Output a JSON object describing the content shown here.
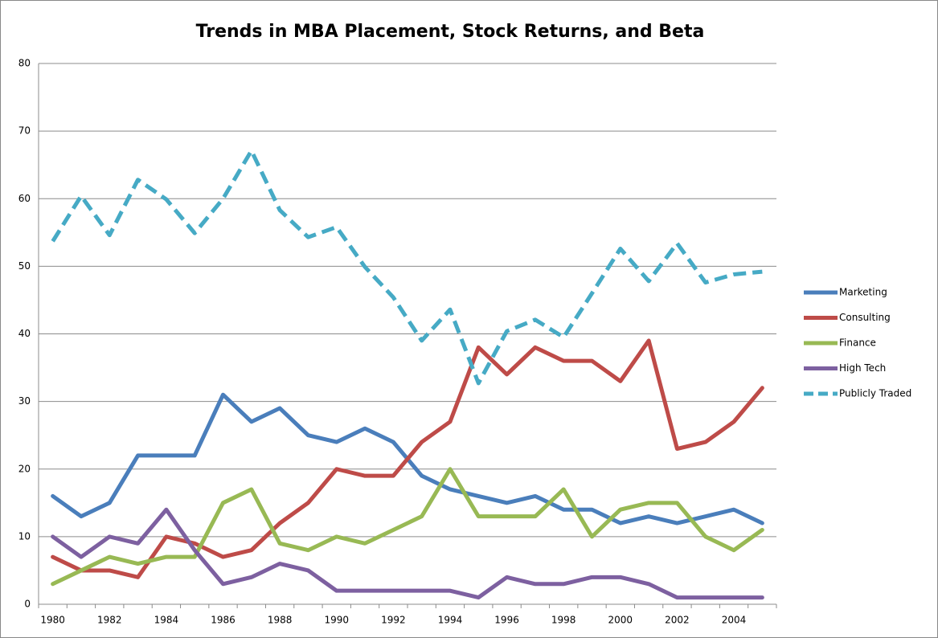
{
  "chart_data": {
    "type": "line",
    "title": "Trends in MBA Placement, Stock Returns, and Beta",
    "categories": [
      "1980",
      null,
      "1982",
      null,
      "1984",
      null,
      "1986",
      null,
      "1988",
      null,
      "1990",
      null,
      "1992",
      null,
      "1994",
      null,
      "1996",
      null,
      "1998",
      null,
      "2000",
      null,
      "2002",
      null,
      "2004",
      null
    ],
    "series": [
      {
        "name": "Marketing",
        "color": "#4a7ebb",
        "values": [
          16,
          13,
          15,
          22,
          22,
          22,
          31,
          27,
          29,
          25,
          24,
          26,
          24,
          19,
          17,
          16,
          15,
          16,
          14,
          14,
          12,
          13,
          12,
          13,
          14,
          12
        ]
      },
      {
        "name": "Consulting",
        "color": "#be4b48",
        "values": [
          7,
          5,
          5,
          4,
          10,
          9,
          7,
          8,
          12,
          15,
          20,
          19,
          19,
          24,
          27,
          38,
          34,
          38,
          36,
          36,
          33,
          39,
          23,
          24,
          27,
          32
        ]
      },
      {
        "name": "Finance",
        "color": "#98b954",
        "values": [
          3,
          5,
          7,
          6,
          7,
          7,
          15,
          17,
          9,
          8,
          10,
          9,
          11,
          13,
          20,
          13,
          13,
          13,
          17,
          10,
          14,
          15,
          15,
          10,
          8,
          11
        ]
      },
      {
        "name": "High Tech",
        "color": "#7d60a0",
        "values": [
          10,
          7,
          10,
          9,
          14,
          8,
          3,
          4,
          6,
          5,
          2,
          2,
          2,
          2,
          2,
          1,
          4,
          3,
          3,
          4,
          4,
          3,
          1,
          1,
          1,
          1
        ]
      },
      {
        "name": "Publicly Traded",
        "color": "#46aac5",
        "line_style": "dashed",
        "values": [
          53.7,
          60.4,
          54.6,
          62.8,
          59.9,
          54.9,
          60.0,
          67.1,
          58.3,
          54.3,
          55.8,
          49.9,
          45.4,
          39.0,
          43.6,
          32.7,
          40.4,
          42.1,
          39.5,
          46.0,
          52.6,
          47.8,
          53.4,
          47.6,
          48.8,
          49.2
        ]
      }
    ],
    "ylim": [
      0,
      80
    ],
    "yticks": [
      0,
      10,
      20,
      30,
      40,
      50,
      60,
      70,
      80
    ],
    "grid": true,
    "legend": "right"
  }
}
